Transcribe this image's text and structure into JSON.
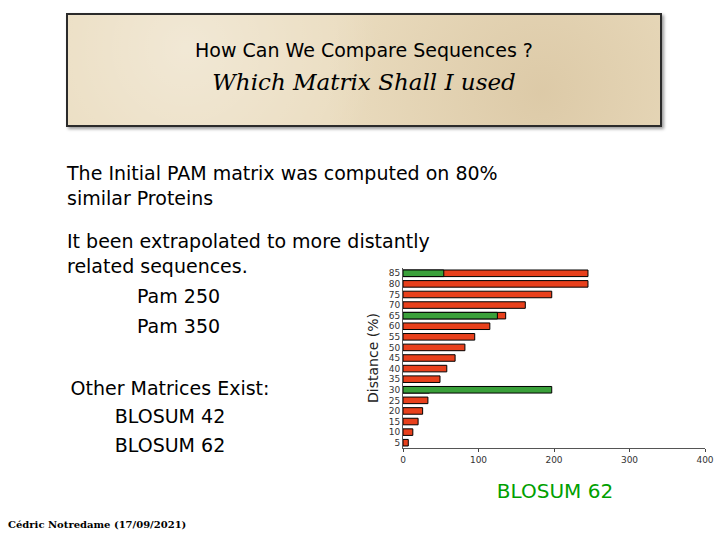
{
  "slide": {
    "title": "How Can We Compare Sequences ?",
    "subtitle": "Which Matrix Shall I used",
    "paragraphs": [
      [
        "The Initial PAM matrix was computed on 80%",
        "similar Proteins"
      ],
      [
        "It been extrapolated to more distantly",
        "related sequences."
      ]
    ],
    "pam_list": [
      "Pam 250",
      "Pam 350"
    ],
    "other_heading": "Other Matrices Exist:",
    "other_list": [
      "BLOSUM 42",
      "BLOSUM 62"
    ],
    "footer": "Cédric Notredame (17/09/2021)"
  },
  "chart_data": {
    "type": "bar",
    "orientation": "horizontal",
    "title": "BLOSUM 62",
    "y_label": "Distance (%)",
    "categories": [
      5,
      10,
      15,
      20,
      25,
      30,
      35,
      40,
      45,
      50,
      55,
      60,
      65,
      70,
      75,
      80,
      85
    ],
    "series": [
      {
        "color": "#e8401c",
        "values": [
          7,
          13,
          20,
          26,
          33,
          35,
          49,
          58,
          69,
          82,
          95,
          115,
          136,
          162,
          197,
          245,
          245
        ]
      },
      {
        "color": "#3aa03a",
        "values": [
          null,
          null,
          null,
          null,
          null,
          197,
          null,
          null,
          null,
          null,
          null,
          null,
          125,
          null,
          null,
          null,
          54
        ]
      }
    ],
    "xlim": [
      0,
      400
    ],
    "xticks": [
      0,
      100,
      200,
      300,
      400
    ],
    "grid": false
  }
}
